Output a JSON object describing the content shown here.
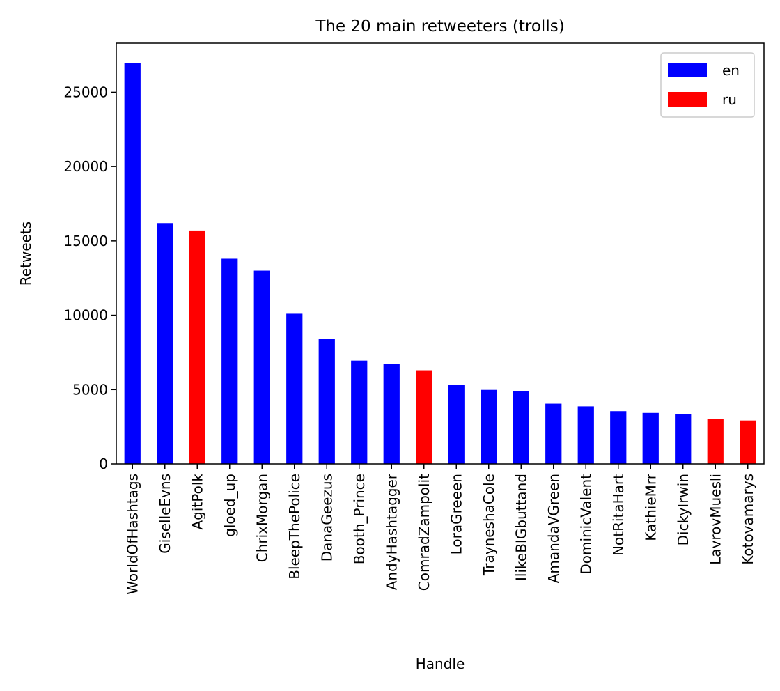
{
  "chart_data": {
    "type": "bar",
    "title": "The 20 main retweeters (trolls)",
    "xlabel": "Handle",
    "ylabel": "Retweets",
    "ylim": [
      0,
      28300
    ],
    "yticks": [
      0,
      5000,
      10000,
      15000,
      20000,
      25000
    ],
    "grid": false,
    "legend_position": "top-right",
    "categories": [
      "WorldOfHashtags",
      "GiselleEvns",
      "AgitPolk",
      "gloed_up",
      "ChrixMorgan",
      "BleepThePolice",
      "DanaGeezus",
      "Booth_Prince",
      "AndyHashtagger",
      "ComradZampolit",
      "LoraGreeen",
      "TrayneshaCole",
      "IlikeBIGbuttand",
      "AmandaVGreen",
      "DominicValent",
      "NotRitaHart",
      "KathieMrr",
      "DickyIrwin",
      "LavrovMuesli",
      "Kotovamarys"
    ],
    "values": [
      26950,
      16200,
      15700,
      13800,
      13000,
      10100,
      8400,
      6950,
      6700,
      6300,
      5300,
      4980,
      4880,
      4050,
      3870,
      3550,
      3430,
      3350,
      3020,
      2920
    ],
    "language": [
      "en",
      "en",
      "ru",
      "en",
      "en",
      "en",
      "en",
      "en",
      "en",
      "ru",
      "en",
      "en",
      "en",
      "en",
      "en",
      "en",
      "en",
      "en",
      "ru",
      "ru"
    ],
    "series": [
      {
        "name": "en",
        "color": "#0000ff"
      },
      {
        "name": "ru",
        "color": "#ff0000"
      }
    ]
  }
}
